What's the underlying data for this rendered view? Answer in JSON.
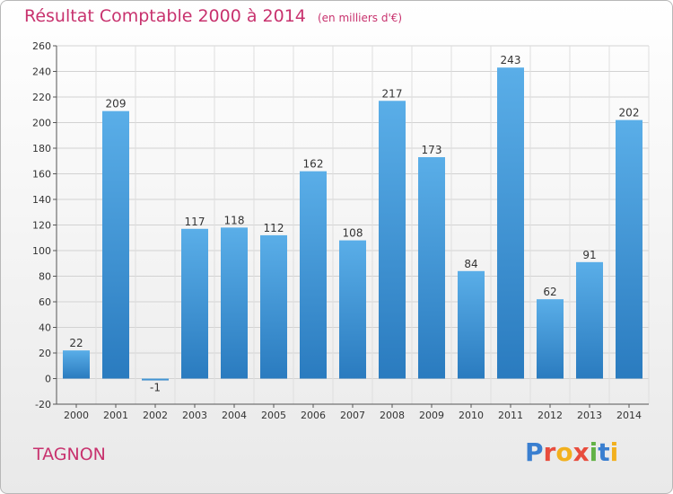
{
  "header": {
    "title": "Résultat Comptable 2000 à 2014",
    "subtitle": "(en milliers d'€)"
  },
  "commune": "TAGNON",
  "logo": {
    "text": "Proxiti",
    "colors": [
      "#3a7fd0",
      "#e84c3d",
      "#f2b01e",
      "#e84c3d",
      "#62b245",
      "#3a7fd0",
      "#f2b01e"
    ]
  },
  "chart_data": {
    "type": "bar",
    "categories": [
      "2000",
      "2001",
      "2002",
      "2003",
      "2004",
      "2005",
      "2006",
      "2007",
      "2008",
      "2009",
      "2010",
      "2011",
      "2012",
      "2013",
      "2014"
    ],
    "values": [
      22,
      209,
      -1,
      117,
      118,
      112,
      162,
      108,
      217,
      173,
      84,
      243,
      62,
      91,
      202
    ],
    "data_labels": [
      "22",
      "209",
      "-1",
      "117",
      "118",
      "112",
      "162",
      "108",
      "217",
      "173",
      "84",
      "243",
      "62",
      "91",
      "202"
    ],
    "ylim": [
      -20,
      260
    ],
    "yticks": [
      -20,
      0,
      20,
      40,
      60,
      80,
      100,
      120,
      140,
      160,
      180,
      200,
      220,
      240,
      260
    ],
    "grid": true,
    "bar_color": "#4b9fdc"
  }
}
